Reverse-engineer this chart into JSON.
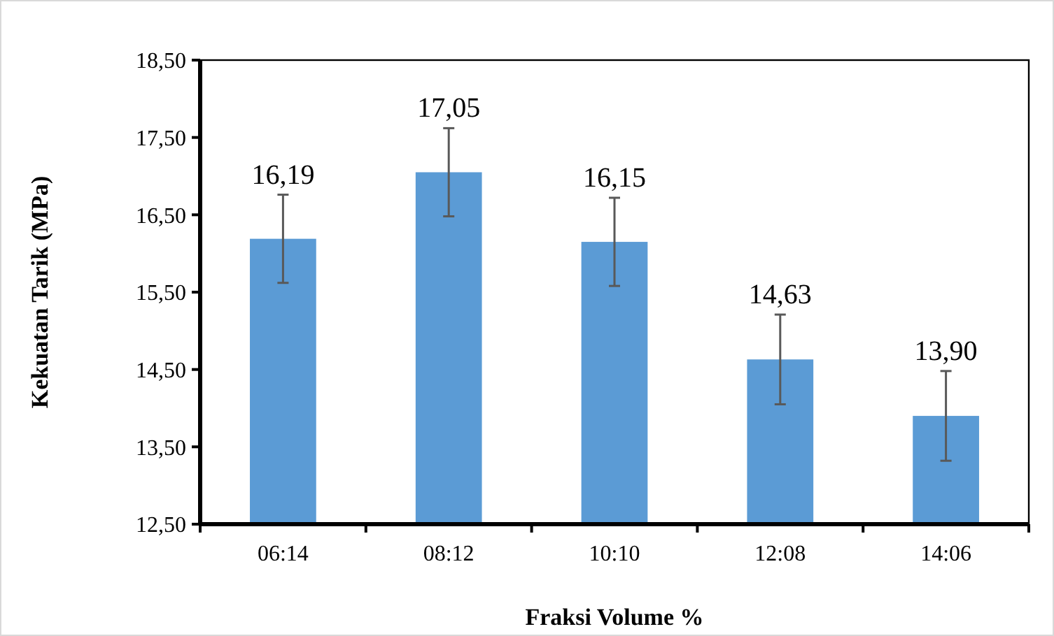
{
  "chart_data": {
    "type": "bar",
    "xlabel": "Fraksi Volume %",
    "ylabel": "Kekuatan Tarik (MPa)",
    "categories": [
      "06:14",
      "08:12",
      "10:10",
      "12:08",
      "14:06"
    ],
    "values": [
      16.19,
      17.05,
      16.15,
      14.63,
      13.9
    ],
    "value_labels": [
      "16,19",
      "17,05",
      "16,15",
      "14,63",
      "13,90"
    ],
    "errors": [
      0.57,
      0.57,
      0.57,
      0.58,
      0.58
    ],
    "color": "#5b9bd5",
    "ylim": [
      12.5,
      18.5
    ],
    "yticks": [
      {
        "value": 12.5,
        "label": "12,50"
      },
      {
        "value": 13.5,
        "label": "13,50"
      },
      {
        "value": 14.5,
        "label": "14,50"
      },
      {
        "value": 15.5,
        "label": "15,50"
      },
      {
        "value": 16.5,
        "label": "16,50"
      },
      {
        "value": 17.5,
        "label": "17,50"
      },
      {
        "value": 18.5,
        "label": "18,50"
      }
    ],
    "grid": false
  }
}
